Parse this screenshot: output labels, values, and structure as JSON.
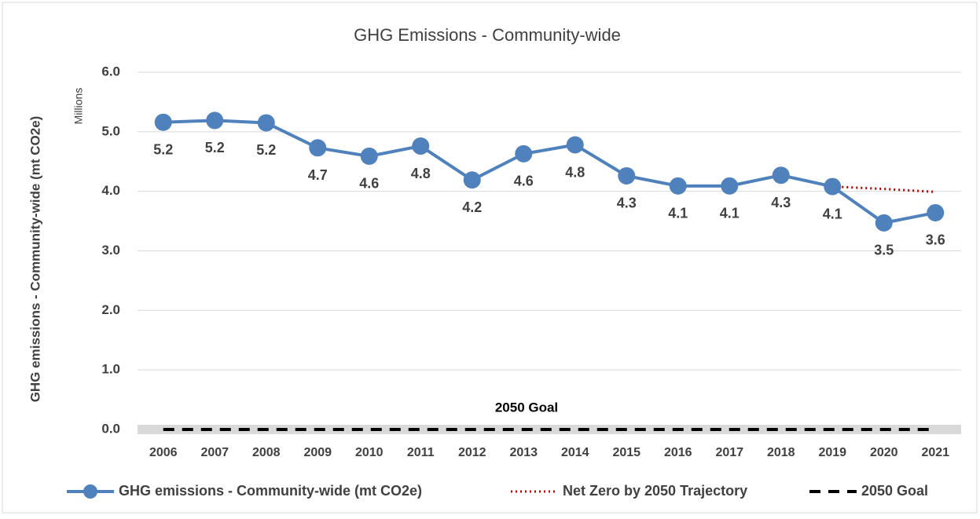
{
  "chart_data": {
    "type": "line",
    "title": "GHG Emissions - Community-wide",
    "y_label": "GHG emissions - Community-wide (mt CO2e)",
    "y_unit_label": "Millions",
    "annotation": "2050 Goal",
    "categories": [
      "2006",
      "2007",
      "2008",
      "2009",
      "2010",
      "2011",
      "2012",
      "2013",
      "2014",
      "2015",
      "2016",
      "2017",
      "2018",
      "2019",
      "2020",
      "2021"
    ],
    "series": [
      {
        "name": "GHG emissions - Community-wide (mt CO2e)",
        "color": "#4f81bd",
        "style": "solid-marker",
        "values": [
          5.16,
          5.19,
          5.15,
          4.73,
          4.59,
          4.76,
          4.19,
          4.63,
          4.78,
          4.26,
          4.09,
          4.09,
          4.27,
          4.08,
          3.47,
          3.64
        ],
        "value_labels": [
          "5.2",
          "5.2",
          "5.2",
          "4.7",
          "4.6",
          "4.8",
          "4.2",
          "4.6",
          "4.8",
          "4.3",
          "4.1",
          "4.1",
          "4.3",
          "4.1",
          "3.5",
          "3.6"
        ]
      },
      {
        "name": "Net Zero by 2050 Trajectory",
        "color": "#c00000",
        "style": "dotted",
        "values": [
          null,
          null,
          null,
          null,
          null,
          null,
          null,
          null,
          null,
          null,
          null,
          null,
          null,
          4.08,
          4.04,
          3.99
        ]
      },
      {
        "name": "2050 Goal",
        "color": "#000000",
        "style": "dashed",
        "values": [
          0,
          0,
          0,
          0,
          0,
          0,
          0,
          0,
          0,
          0,
          0,
          0,
          0,
          0,
          0,
          0
        ]
      }
    ],
    "ylim": [
      0,
      6
    ],
    "yticks": [
      {
        "value": 0,
        "label": "0.0"
      },
      {
        "value": 1,
        "label": "1.0"
      },
      {
        "value": 2,
        "label": "2.0"
      },
      {
        "value": 3,
        "label": "3.0"
      },
      {
        "value": 4,
        "label": "4.0"
      },
      {
        "value": 5,
        "label": "5.0"
      },
      {
        "value": 6,
        "label": "6.0"
      }
    ],
    "grid": true,
    "legend": "bottom"
  }
}
